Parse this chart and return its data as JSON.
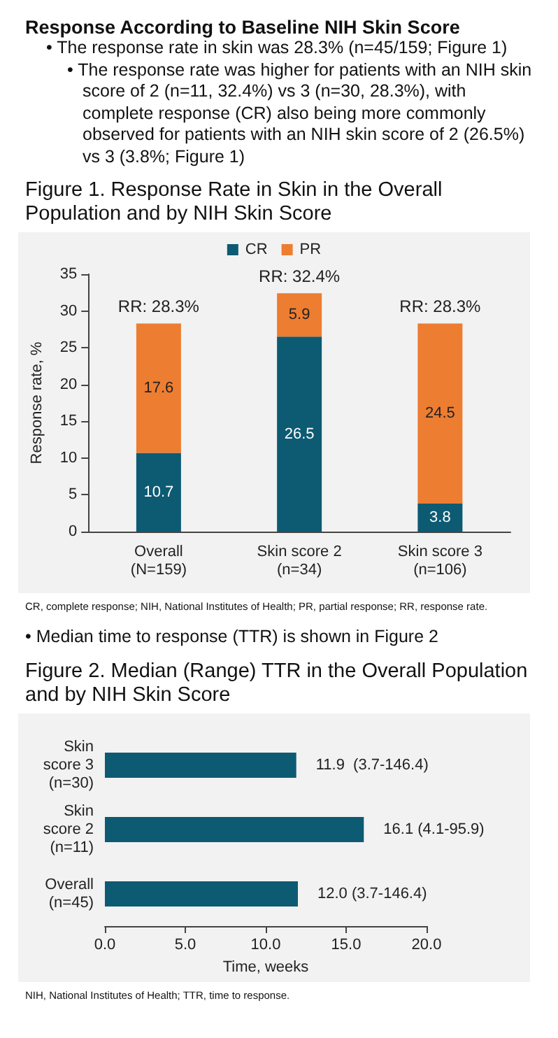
{
  "chart_data": [
    {
      "type": "bar",
      "title": "Response According to Baseline NIH Skin Score",
      "subtitle": "Figure 1. Response Rate in Skin in the Overall Population and by NIH Skin Score",
      "annotations": [
        "• The response rate in skin was 28.3% (n=45/159; Figure 1)",
        "• The response rate was higher for patients with an NIH skin score of 2 (n=11, 32.4%) vs 3 (n=30, 28.3%), with complete response (CR) also being more commonly observed for patients with an NIH skin score of 2 (26.5%) vs 3 (3.8%; Figure 1)",
        "CR, complete response; NIH, National Institutes of Health; PR, partial response; RR, response rate.",
        "• Median time to response (TTR) is shown in Figure 2"
      ],
      "categories": [
        "Overall\n(N=159)",
        "Skin score 2\n(n=34)",
        "Skin score 3\n(n=106)"
      ],
      "series": [
        {
          "name": "CR",
          "color": "#0d5a73",
          "values": [
            10.7,
            26.5,
            3.8
          ]
        },
        {
          "name": "PR",
          "color": "#ed7d31",
          "values": [
            17.6,
            5.9,
            24.5
          ]
        }
      ],
      "stacked": true,
      "data_labels": true,
      "totals": [
        "RR: 28.3%",
        "RR: 32.4%",
        "RR: 28.3%"
      ],
      "ylabel": "Response rate, %",
      "ylim": [
        0,
        35
      ],
      "yticks": [
        0,
        5,
        10,
        15,
        20,
        25,
        30,
        35
      ],
      "grid": false,
      "legend": "top"
    },
    {
      "type": "bar",
      "orientation": "horizontal",
      "title": "Figure 2. Median (Range) TTR in the Overall Population and by NIH Skin Score",
      "annotations": [
        "NIH, National Institutes of Health; TTR, time to response."
      ],
      "categories": [
        "Skin\nscore 3\n(n=30)",
        "Skin\nscore 2\n(n=11)",
        "Overall\n(n=45)"
      ],
      "values": [
        11.9,
        16.1,
        12.0
      ],
      "color": "#0d5a73",
      "value_labels": [
        "11.9  (3.7-146.4)",
        "16.1 (4.1-95.9)",
        "12.0 (3.7-146.4)"
      ],
      "xlabel": "Time, weeks",
      "xlim": [
        0,
        20
      ],
      "xticks": [
        {
          "value": 0,
          "label": "0.0"
        },
        {
          "value": 5,
          "label": "5.0"
        },
        {
          "value": 10,
          "label": "10.0"
        },
        {
          "value": 15,
          "label": "15.0"
        },
        {
          "value": 20,
          "label": "20.0"
        }
      ],
      "grid": false,
      "legend": false
    }
  ]
}
